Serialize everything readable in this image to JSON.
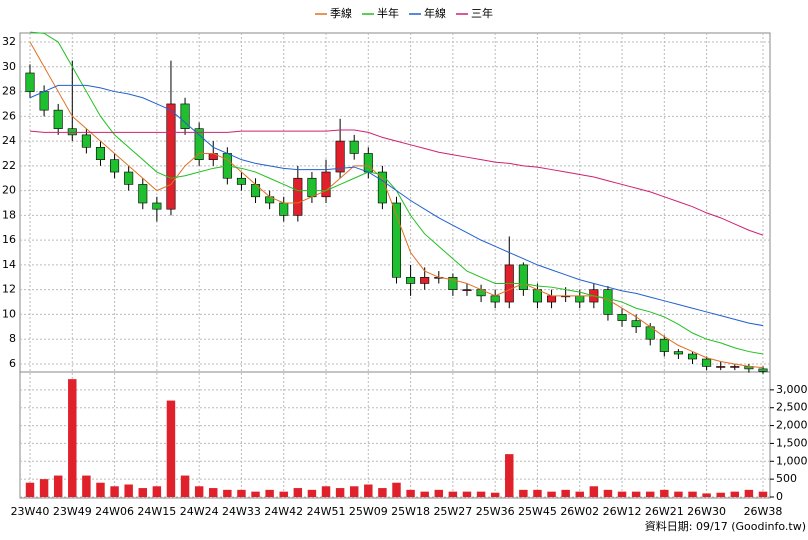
{
  "chart_data": {
    "type": "candlestick",
    "categories": [
      "23W40",
      null,
      null,
      "23W49",
      null,
      null,
      "24W06",
      null,
      null,
      "24W15",
      null,
      null,
      "24W24",
      null,
      null,
      "24W33",
      null,
      null,
      "24W42",
      null,
      null,
      "24W51",
      null,
      null,
      "25W09",
      null,
      null,
      "25W18",
      null,
      null,
      "25W27",
      null,
      null,
      "25W36",
      null,
      null,
      "25W45",
      null,
      null,
      "26W02",
      null,
      null,
      "26W12",
      null,
      null,
      "26W21",
      null,
      null,
      "26W30",
      null,
      null,
      null,
      "26W38"
    ],
    "open": [
      29.5,
      28,
      26.5,
      25,
      24.5,
      23.5,
      22.5,
      21.5,
      20.5,
      19,
      18.5,
      27,
      25,
      22.5,
      23,
      21,
      20.5,
      19.5,
      19,
      18,
      21,
      19.5,
      21.5,
      24,
      23,
      21.5,
      19,
      13,
      12.5,
      13,
      13,
      12,
      12,
      11.5,
      11,
      14,
      12,
      11,
      11.5,
      11.5,
      11,
      12,
      10,
      9.5,
      9,
      8,
      7,
      6.8,
      6.4,
      5.8,
      5.8,
      5.8,
      5.6
    ],
    "high": [
      30.2,
      28.5,
      27,
      30.5,
      25,
      24,
      23,
      22,
      21,
      19.5,
      30.5,
      27.5,
      25.5,
      24,
      23.5,
      21.5,
      21,
      20,
      19.5,
      22,
      21.5,
      22.5,
      25.8,
      24.5,
      23.5,
      22,
      19.5,
      14,
      13.8,
      13.5,
      13.3,
      12.5,
      12.4,
      12,
      16.3,
      14.2,
      12.5,
      12,
      12.2,
      12,
      12.5,
      12.3,
      10.5,
      10,
      9.3,
      8.3,
      7.2,
      7,
      6.6,
      6.2,
      6,
      6,
      5.8
    ],
    "low": [
      27.5,
      26,
      24.5,
      24,
      23,
      22,
      21,
      20,
      18.5,
      17.5,
      18,
      24.5,
      22,
      22,
      20.5,
      20,
      19,
      18.5,
      17.5,
      17.5,
      19,
      19,
      21,
      22.5,
      21,
      18.5,
      12.5,
      11.5,
      12,
      12.5,
      11.5,
      11.5,
      11,
      10.5,
      10.5,
      11.5,
      10.5,
      10.5,
      11,
      10.5,
      10.5,
      9.5,
      9,
      8.5,
      7.5,
      6.6,
      6.4,
      6,
      5.5,
      5.5,
      5.5,
      5.3,
      5.2
    ],
    "close": [
      28,
      26.5,
      25,
      24.5,
      23.5,
      22.5,
      21.5,
      20.5,
      19,
      18.5,
      27,
      25,
      22.5,
      23,
      21,
      20.5,
      19.5,
      19,
      18,
      21,
      19.5,
      21.5,
      24,
      23,
      21.5,
      19,
      13,
      12.5,
      13,
      13,
      12,
      12,
      11.5,
      11,
      14,
      12,
      11,
      11.5,
      11.5,
      11,
      12,
      10,
      9.5,
      9,
      8,
      7,
      6.8,
      6.4,
      5.8,
      5.8,
      5.8,
      5.6,
      5.4
    ],
    "up_color": "#e0202a",
    "down_color": "#1fbf2f",
    "moving_averages": [
      {
        "name": "季線",
        "color": "#e07020",
        "values": [
          32,
          30,
          28,
          26,
          25,
          24,
          23,
          22,
          21,
          20,
          20.5,
          22,
          23,
          23,
          22.5,
          21.5,
          20.5,
          19.5,
          19,
          19,
          19.5,
          20,
          21,
          22,
          22,
          21,
          18,
          15,
          13.5,
          13,
          12.8,
          12.5,
          12,
          11.5,
          12,
          12.5,
          12,
          11.5,
          11.5,
          11.5,
          11.5,
          11.2,
          10.5,
          9.8,
          9,
          8.2,
          7.5,
          7,
          6.5,
          6.2,
          6,
          5.8,
          5.7
        ]
      },
      {
        "name": "半年",
        "color": "#20c020",
        "values": [
          32.8,
          32.7,
          32,
          30,
          28,
          26,
          24.5,
          23.5,
          22.5,
          21.5,
          21,
          21.2,
          21.5,
          21.8,
          22,
          21.8,
          21.5,
          21,
          20.5,
          20,
          20,
          20,
          20.5,
          21,
          21.5,
          21.3,
          20,
          18,
          16.5,
          15.5,
          14.5,
          13.5,
          13,
          12.5,
          12.5,
          12.5,
          12.3,
          12.2,
          12,
          11.8,
          11.5,
          11.3,
          11,
          10.5,
          10.2,
          9.8,
          9.2,
          8.5,
          8,
          7.7,
          7.3,
          7,
          6.8
        ]
      },
      {
        "name": "年線",
        "color": "#2060d0",
        "values": [
          27.5,
          28,
          28.5,
          28.5,
          28.5,
          28.3,
          28,
          27.8,
          27.5,
          27,
          26.5,
          25.5,
          24.5,
          23.5,
          23,
          22.5,
          22.2,
          22,
          21.8,
          21.7,
          21.7,
          21.7,
          21.8,
          21.9,
          21.5,
          20.8,
          20,
          19.2,
          18.5,
          17.8,
          17.2,
          16.6,
          16,
          15.5,
          15,
          14.5,
          14,
          13.6,
          13.2,
          12.8,
          12.5,
          12.2,
          11.9,
          11.7,
          11.4,
          11.1,
          10.8,
          10.5,
          10.2,
          9.9,
          9.6,
          9.3,
          9.1
        ]
      },
      {
        "name": "三年",
        "color": "#d02070",
        "values": [
          24.8,
          24.7,
          24.7,
          24.7,
          24.7,
          24.7,
          24.7,
          24.7,
          24.7,
          24.7,
          24.7,
          24.7,
          24.7,
          24.7,
          24.7,
          24.8,
          24.8,
          24.8,
          24.8,
          24.8,
          24.8,
          24.8,
          24.9,
          24.9,
          24.7,
          24.3,
          24,
          23.7,
          23.4,
          23.1,
          22.9,
          22.7,
          22.5,
          22.3,
          22.2,
          22,
          21.9,
          21.7,
          21.5,
          21.3,
          21.1,
          20.8,
          20.5,
          20.2,
          19.9,
          19.5,
          19.1,
          18.7,
          18.2,
          17.8,
          17.3,
          16.8,
          16.4
        ]
      }
    ],
    "ylim": [
      5.35,
      32.73
    ],
    "yticks": [
      6,
      8,
      10,
      12,
      14,
      16,
      18,
      20,
      22,
      24,
      26,
      28,
      30,
      32
    ],
    "volume": [
      400,
      500,
      600,
      3300,
      600,
      400,
      300,
      350,
      250,
      300,
      2700,
      600,
      300,
      250,
      200,
      200,
      150,
      200,
      150,
      250,
      200,
      300,
      250,
      300,
      350,
      250,
      400,
      200,
      150,
      200,
      150,
      150,
      150,
      120,
      1200,
      200,
      200,
      150,
      200,
      150,
      300,
      200,
      150,
      150,
      150,
      200,
      150,
      150,
      100,
      120,
      150,
      200,
      150
    ],
    "volume_color": "#e0202a",
    "y2lim": [
      0,
      3500
    ],
    "y2ticks": [
      0,
      {
        "value": 500,
        "label": "500"
      },
      {
        "value": 1000,
        "label": "1,000"
      },
      {
        "value": 1500,
        "label": "1,500"
      },
      {
        "value": 2000,
        "label": "2,000"
      },
      {
        "value": 2500,
        "label": "2,500"
      },
      {
        "value": 3000,
        "label": "3,000"
      }
    ],
    "grid": true,
    "source": "資料日期: 09/17  (Goodinfo.tw)"
  }
}
